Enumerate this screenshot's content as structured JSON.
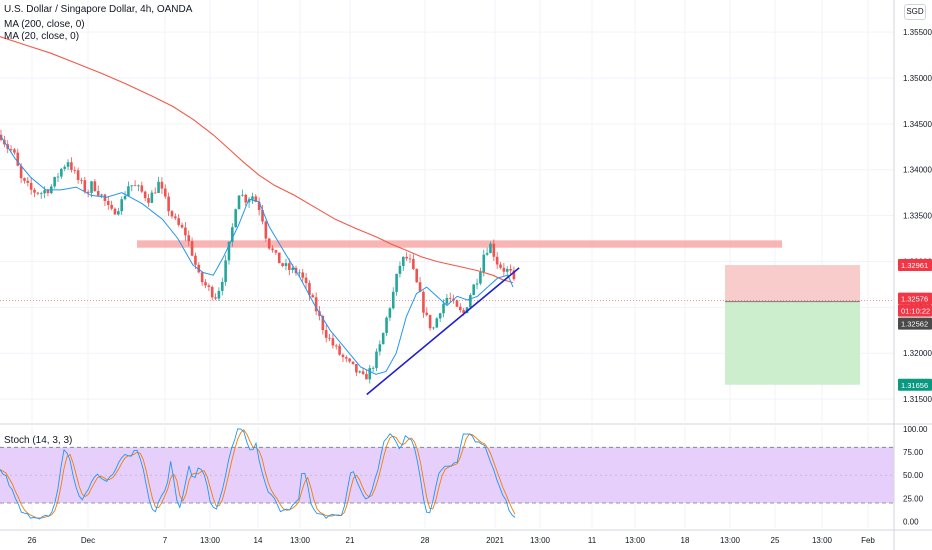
{
  "legend": {
    "symbol": "U.S. Dollar / Singapore Dollar, 4h, OANDA",
    "ma200": "MA (200, close, 0)",
    "ma20": "MA (20, close, 0)",
    "stoch": "Stoch (14, 3, 3)"
  },
  "currency_button": "SGD",
  "colors": {
    "up": "#26a69a",
    "down": "#ef5350",
    "ma200": "#f05a48",
    "ma20": "#2196f3",
    "trendline": "#1e1ed2",
    "zone": "#f7a1a1",
    "stop": "#f8c7c7",
    "target": "#c8ecc8",
    "stoch_bg": "#e2c8fa",
    "stoch_k": "#2196f3",
    "stoch_d": "#f57c00"
  },
  "chart_data": [
    {
      "type": "candlestick",
      "title": "U.S. Dollar / Singapore Dollar, 4h, OANDA",
      "x_ticks": [
        "26",
        "Dec",
        "7",
        "13:00",
        "14",
        "13:00",
        "21",
        "28",
        "2021",
        "13:00",
        "11",
        "13:00",
        "18",
        "13:00",
        "25",
        "13:00",
        "Feb"
      ],
      "y_ticks": [
        "1.35500",
        "1.35000",
        "1.34500",
        "1.34000",
        "1.33500",
        "1.33000",
        "1.32500",
        "1.32000",
        "1.31500"
      ],
      "ylim": [
        1.3125,
        1.3585
      ],
      "price_labels": [
        {
          "text": "1.32961",
          "value": 1.32961,
          "role": "stop"
        },
        {
          "text": "1.32576",
          "value": 1.32576,
          "role": "last"
        },
        {
          "text": "01:10:22",
          "value": 1.32475,
          "role": "countdown"
        },
        {
          "text": "1.32562",
          "value": 1.32562,
          "role": "entry"
        },
        {
          "text": "1.31656",
          "value": 1.31656,
          "role": "target"
        }
      ],
      "ma200": [
        [
          0,
          1.3545
        ],
        [
          25,
          1.3536
        ],
        [
          50,
          1.3527
        ],
        [
          75,
          1.3516
        ],
        [
          100,
          1.3505
        ],
        [
          125,
          1.3493
        ],
        [
          150,
          1.348
        ],
        [
          170,
          1.3469
        ],
        [
          190,
          1.3455
        ],
        [
          210,
          1.3438
        ],
        [
          225,
          1.3423
        ],
        [
          240,
          1.3408
        ],
        [
          255,
          1.3394
        ],
        [
          270,
          1.3383
        ],
        [
          290,
          1.3372
        ],
        [
          310,
          1.3359
        ],
        [
          330,
          1.3346
        ],
        [
          350,
          1.3336
        ],
        [
          370,
          1.3327
        ],
        [
          385,
          1.3319
        ],
        [
          400,
          1.3312
        ],
        [
          415,
          1.3305
        ],
        [
          430,
          1.33
        ],
        [
          450,
          1.3295
        ],
        [
          470,
          1.329
        ],
        [
          485,
          1.3285
        ],
        [
          495,
          1.328
        ],
        [
          505,
          1.3277
        ]
      ],
      "ma20": [
        [
          0,
          1.3438
        ],
        [
          15,
          1.3412
        ],
        [
          30,
          1.3392
        ],
        [
          45,
          1.3378
        ],
        [
          60,
          1.3378
        ],
        [
          75,
          1.3381
        ],
        [
          90,
          1.3372
        ],
        [
          105,
          1.337
        ],
        [
          120,
          1.3375
        ],
        [
          140,
          1.3363
        ],
        [
          160,
          1.3346
        ],
        [
          175,
          1.3325
        ],
        [
          190,
          1.3296
        ],
        [
          200,
          1.3288
        ],
        [
          210,
          1.3285
        ],
        [
          220,
          1.3305
        ],
        [
          235,
          1.334
        ],
        [
          245,
          1.3368
        ],
        [
          255,
          1.3365
        ],
        [
          265,
          1.3338
        ],
        [
          280,
          1.331
        ],
        [
          295,
          1.3283
        ],
        [
          310,
          1.3252
        ],
        [
          325,
          1.3225
        ],
        [
          340,
          1.3205
        ],
        [
          355,
          1.3185
        ],
        [
          370,
          1.3177
        ],
        [
          380,
          1.318
        ],
        [
          390,
          1.32
        ],
        [
          400,
          1.324
        ],
        [
          410,
          1.3265
        ],
        [
          420,
          1.3272
        ],
        [
          430,
          1.3262
        ],
        [
          440,
          1.3252
        ],
        [
          450,
          1.3262
        ],
        [
          460,
          1.3258
        ],
        [
          470,
          1.3262
        ],
        [
          480,
          1.3272
        ],
        [
          490,
          1.3282
        ],
        [
          500,
          1.3285
        ],
        [
          505,
          1.3272
        ]
      ],
      "anchors": [
        [
          0,
          1.3438
        ],
        [
          6,
          1.3425
        ],
        [
          12,
          1.342
        ],
        [
          20,
          1.3388
        ],
        [
          30,
          1.3377
        ],
        [
          40,
          1.3375
        ],
        [
          50,
          1.3382
        ],
        [
          60,
          1.3402
        ],
        [
          66,
          1.341
        ],
        [
          75,
          1.339
        ],
        [
          85,
          1.3375
        ],
        [
          90,
          1.3385
        ],
        [
          100,
          1.337
        ],
        [
          108,
          1.3352
        ],
        [
          118,
          1.3363
        ],
        [
          126,
          1.3385
        ],
        [
          136,
          1.3378
        ],
        [
          146,
          1.3368
        ],
        [
          155,
          1.3385
        ],
        [
          163,
          1.3362
        ],
        [
          172,
          1.3342
        ],
        [
          182,
          1.333
        ],
        [
          188,
          1.331
        ],
        [
          195,
          1.3282
        ],
        [
          204,
          1.327
        ],
        [
          212,
          1.3262
        ],
        [
          220,
          1.329
        ],
        [
          228,
          1.3338
        ],
        [
          233,
          1.3378
        ],
        [
          240,
          1.3368
        ],
        [
          248,
          1.3372
        ],
        [
          256,
          1.3355
        ],
        [
          262,
          1.3322
        ],
        [
          270,
          1.3305
        ],
        [
          278,
          1.3295
        ],
        [
          286,
          1.329
        ],
        [
          294,
          1.3288
        ],
        [
          302,
          1.3268
        ],
        [
          310,
          1.3248
        ],
        [
          318,
          1.3225
        ],
        [
          326,
          1.321
        ],
        [
          334,
          1.3198
        ],
        [
          342,
          1.3188
        ],
        [
          350,
          1.318
        ],
        [
          356,
          1.3172
        ],
        [
          362,
          1.3178
        ],
        [
          368,
          1.3192
        ],
        [
          374,
          1.321
        ],
        [
          380,
          1.324
        ],
        [
          386,
          1.3265
        ],
        [
          392,
          1.3295
        ],
        [
          398,
          1.3305
        ],
        [
          403,
          1.3298
        ],
        [
          410,
          1.3272
        ],
        [
          418,
          1.324
        ],
        [
          425,
          1.3225
        ],
        [
          432,
          1.3248
        ],
        [
          440,
          1.3262
        ],
        [
          448,
          1.3248
        ],
        [
          455,
          1.3242
        ],
        [
          462,
          1.3265
        ],
        [
          470,
          1.3285
        ],
        [
          476,
          1.3312
        ],
        [
          482,
          1.3318
        ],
        [
          488,
          1.33
        ],
        [
          494,
          1.3292
        ],
        [
          500,
          1.3289
        ],
        [
          504,
          1.3283
        ],
        [
          507,
          1.3258
        ]
      ],
      "support_zone": [
        1.3315,
        1.3323
      ],
      "trendline": [
        [
          361,
          1.3155
        ],
        [
          511,
          1.3293
        ]
      ],
      "position": {
        "stop": 1.32961,
        "entry": 1.32562,
        "target": 1.31656
      }
    },
    {
      "type": "line",
      "title": "Stoch (14, 3, 3)",
      "y_ticks": [
        "100.00",
        "75.00",
        "50.00",
        "25.00",
        "0.00"
      ],
      "ylim": [
        -7,
        103
      ],
      "bands": [
        20,
        80
      ],
      "k_anchors": [
        [
          0,
          55
        ],
        [
          5,
          50
        ],
        [
          10,
          38
        ],
        [
          16,
          22
        ],
        [
          22,
          8
        ],
        [
          30,
          6
        ],
        [
          40,
          5
        ],
        [
          50,
          5
        ],
        [
          56,
          25
        ],
        [
          62,
          78
        ],
        [
          68,
          72
        ],
        [
          74,
          38
        ],
        [
          80,
          22
        ],
        [
          88,
          38
        ],
        [
          96,
          52
        ],
        [
          104,
          42
        ],
        [
          110,
          48
        ],
        [
          116,
          62
        ],
        [
          122,
          72
        ],
        [
          128,
          70
        ],
        [
          134,
          82
        ],
        [
          140,
          62
        ],
        [
          146,
          25
        ],
        [
          152,
          8
        ],
        [
          158,
          28
        ],
        [
          164,
          38
        ],
        [
          168,
          65
        ],
        [
          172,
          40
        ],
        [
          176,
          10
        ],
        [
          182,
          38
        ],
        [
          186,
          62
        ],
        [
          190,
          42
        ],
        [
          196,
          62
        ],
        [
          202,
          50
        ],
        [
          207,
          22
        ],
        [
          212,
          10
        ],
        [
          218,
          28
        ],
        [
          224,
          60
        ],
        [
          228,
          78
        ],
        [
          234,
          102
        ],
        [
          240,
          95
        ],
        [
          246,
          75
        ],
        [
          252,
          82
        ],
        [
          258,
          55
        ],
        [
          264,
          30
        ],
        [
          270,
          24
        ],
        [
          276,
          12
        ],
        [
          282,
          12
        ],
        [
          288,
          16
        ],
        [
          294,
          24
        ],
        [
          298,
          58
        ],
        [
          302,
          48
        ],
        [
          306,
          18
        ],
        [
          312,
          8
        ],
        [
          320,
          6
        ],
        [
          328,
          5
        ],
        [
          336,
          6
        ],
        [
          340,
          22
        ],
        [
          346,
          58
        ],
        [
          350,
          50
        ],
        [
          354,
          35
        ],
        [
          360,
          22
        ],
        [
          366,
          32
        ],
        [
          372,
          55
        ],
        [
          378,
          88
        ],
        [
          384,
          95
        ],
        [
          390,
          88
        ],
        [
          394,
          75
        ],
        [
          400,
          94
        ],
        [
          406,
          88
        ],
        [
          412,
          60
        ],
        [
          418,
          18
        ],
        [
          422,
          6
        ],
        [
          426,
          22
        ],
        [
          432,
          52
        ],
        [
          438,
          60
        ],
        [
          444,
          58
        ],
        [
          450,
          64
        ],
        [
          456,
          92
        ],
        [
          462,
          95
        ],
        [
          468,
          88
        ],
        [
          474,
          86
        ],
        [
          480,
          75
        ],
        [
          486,
          55
        ],
        [
          492,
          38
        ],
        [
          498,
          22
        ],
        [
          502,
          10
        ],
        [
          506,
          3
        ]
      ]
    }
  ]
}
